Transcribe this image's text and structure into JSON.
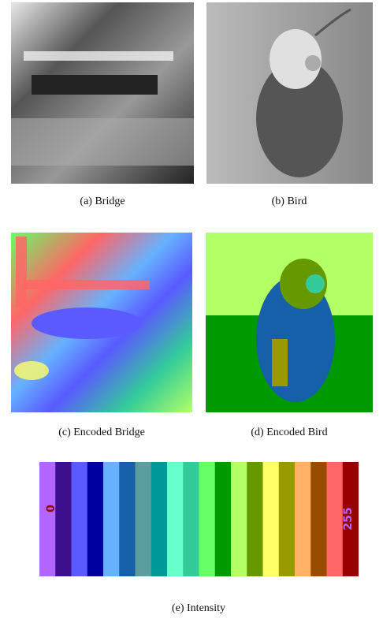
{
  "figures": [
    {
      "caption": "(a) Bridge"
    },
    {
      "caption": "(b) Bird"
    },
    {
      "caption": "(c) Encoded Bridge"
    },
    {
      "caption": "(d) Encoded Bird"
    }
  ],
  "colorbar": {
    "caption": "(e) Intensity",
    "min_label": "0",
    "max_label": "255"
  }
}
